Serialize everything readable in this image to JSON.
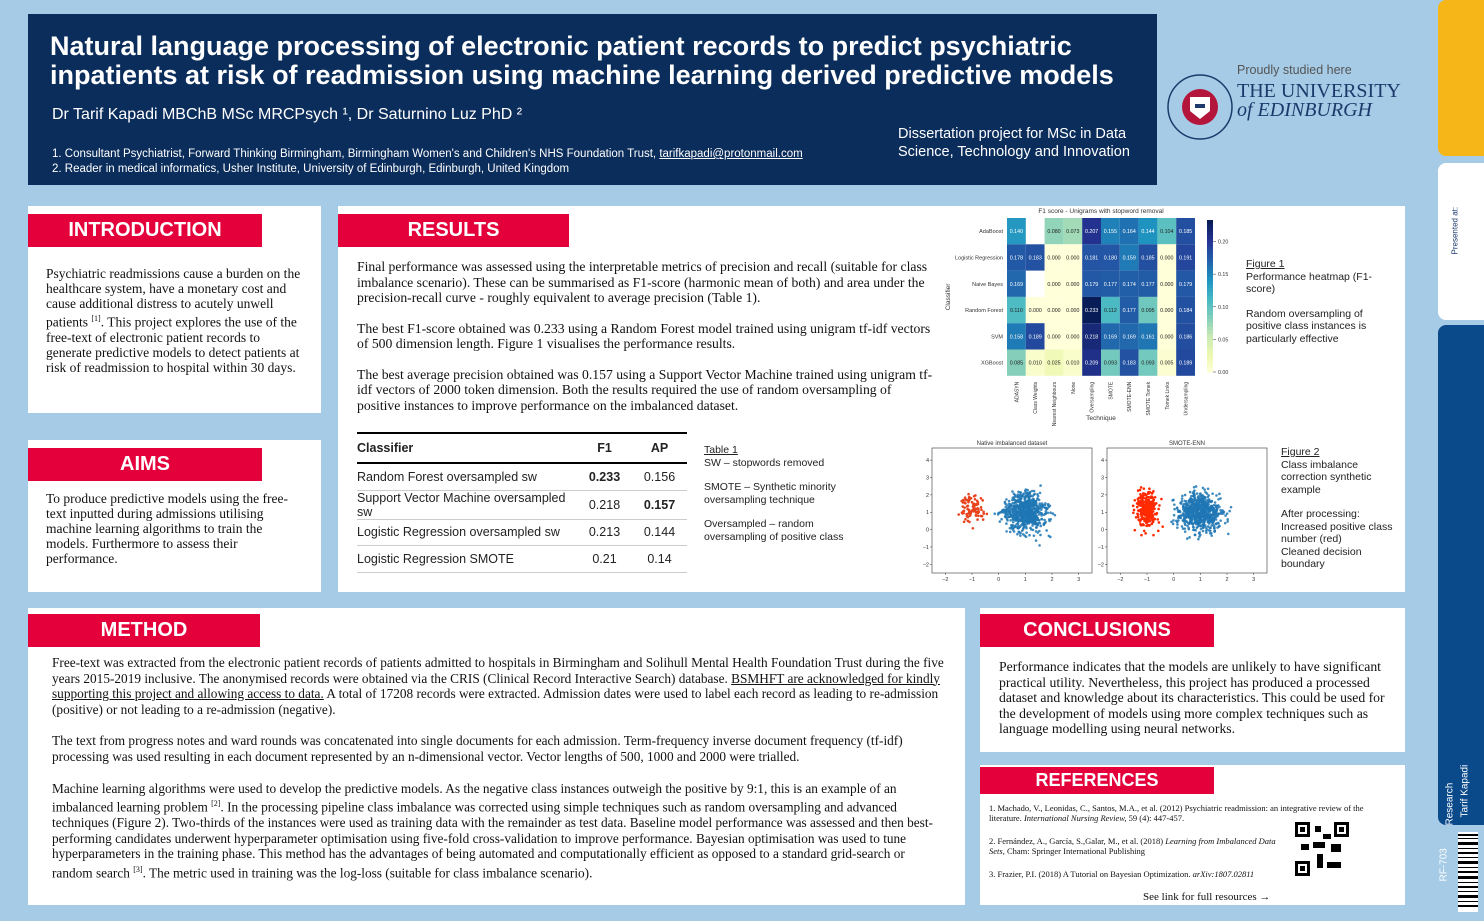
{
  "header": {
    "title_lines": [
      "Natural language processing of electronic patient records to predict psychiatric",
      "inpatients at risk of readmission using machine learning derived predictive models"
    ],
    "authors": "Dr Tarif Kapadi MBChB MSc MRCPsych ¹, Dr Saturnino Luz PhD ²",
    "affiliations": [
      "1. Consultant Psychiatrist, Forward Thinking Birmingham, Birmingham Women's and Children's NHS Foundation Trust, ",
      "tarifkapadi@protonmail.com",
      "2. Reader in medical informatics, Usher Institute, University of Edinburgh, Edinburgh, United Kingdom"
    ],
    "project": [
      "Dissertation project for MSc in Data",
      "Science, Technology and Innovation"
    ],
    "proudly": "Proudly studied here",
    "university": [
      "THE UNIVERSITY",
      "of EDINBURGH"
    ]
  },
  "introduction": {
    "heading": "INTRODUCTION",
    "text": [
      "Psychiatric readmissions cause a burden on the healthcare system, have a monetary cost and cause additional distress to acutely unwell patients ",
      "[1]",
      ". This project explores the use of the free-text of electronic patient records to generate predictive models to detect patients at risk of readmission to hospital within 30 days."
    ]
  },
  "aims": {
    "heading": "AIMS",
    "text": "To produce predictive models using the free-text inputted during admissions utilising machine learning algorithms to train the models. Furthermore to assess their performance."
  },
  "results": {
    "heading": "RESULTS",
    "paragraphs": [
      "Final performance was assessed using the interpretable metrics of precision and recall (suitable for class imbalance scenario). These can be summarised as F1-score (harmonic mean of both) and area under the precision-recall curve - roughly equivalent to average precision (Table 1).",
      "The best F1-score obtained was 0.233 using a Random Forest model trained using unigram tf-idf vectors of 500 dimension length. Figure 1 visualises the performance results.",
      "The best average precision obtained was 0.157 using a Support Vector Machine trained using unigram tf-idf vectors of 2000 token dimension. Both the results required the use of random oversampling of positive instances to improve performance on the imbalanced dataset."
    ],
    "table": {
      "columns": [
        "Classifier",
        "F1",
        "AP"
      ],
      "rows": [
        [
          "Random Forest oversampled sw",
          0.233,
          0.156
        ],
        [
          "Support Vector Machine oversampled sw",
          0.218,
          0.157
        ],
        [
          "Logistic Regression oversampled sw",
          0.213,
          0.144
        ],
        [
          "Logistic Regression SMOTE",
          0.21,
          0.14
        ]
      ]
    },
    "table_notes": [
      "Table 1",
      "SW – stopwords removed",
      "SMOTE – Synthetic minority oversampling technique",
      "Oversampled – random oversampling of positive class"
    ],
    "heatmap": {
      "title": "F1 score - Unigrams with stopword removal",
      "ylabel": "Classifier",
      "xlabel": "Technique",
      "rows": [
        "AdaBoost",
        "Logistic Regression",
        "Naive Bayes",
        "Random Forest",
        "SVM",
        "XGBoost"
      ],
      "columns": [
        "ADASYN",
        "Class Weights",
        "Edited Nearest Neighbours",
        "None",
        "Oversampling",
        "SMOTE",
        "SMOTE-ENN",
        "SMOTE Tomek",
        "Tomek Links",
        "Undersampling"
      ],
      "values": [
        [
          0.14,
          null,
          0.08,
          0.073,
          0.207,
          0.155,
          0.164,
          0.144,
          0.104,
          0.185
        ],
        [
          0.178,
          0.183,
          0,
          0,
          0.181,
          0.18,
          0.159,
          0.185,
          0,
          0.191
        ],
        [
          0.169,
          null,
          0,
          0,
          0.179,
          0.177,
          0.174,
          0.177,
          0,
          0.179
        ],
        [
          0.11,
          0,
          0,
          0,
          0.233,
          0.112,
          0.177,
          0.095,
          0,
          0.184
        ],
        [
          0.158,
          0.189,
          0,
          0,
          0.218,
          0.169,
          0.169,
          0.161,
          0,
          0.186
        ],
        [
          0.085,
          0.01,
          0.025,
          0.01,
          0.209,
          0.093,
          0.183,
          0.093,
          0.005,
          0.189
        ]
      ],
      "value_labels": [
        [
          "0.140",
          null,
          "0.080",
          "0.073",
          "0.207",
          "0.155",
          "0.164",
          "0.144",
          "0.104",
          "0.185"
        ],
        [
          "0.178",
          "0.183",
          "0.000",
          "0.000",
          "0.181",
          "0.180",
          "0.159",
          "0.185",
          "0.000",
          "0.191"
        ],
        [
          "0.169",
          null,
          "0.000",
          "0.000",
          "0.179",
          "0.177",
          "0.174",
          "0.177",
          "0.000",
          "0.179"
        ],
        [
          "0.110",
          "0.000",
          "0.000",
          "0.000",
          "0.233",
          "0.112",
          "0.177",
          "0.095",
          "0.000",
          "0.184"
        ],
        [
          "0.158",
          "0.189",
          "0.000",
          "0.000",
          "0.218",
          "0.169",
          "0.169",
          "0.161",
          "0.000",
          "0.186"
        ],
        [
          "0.085",
          "0.010",
          "0.025",
          "0.010",
          "0.209",
          "0.093",
          "0.183",
          "0.093",
          "0.005",
          "0.189"
        ]
      ],
      "clim": [
        0,
        0.233
      ],
      "cticks": [
        {
          "value": 0,
          "label": "0.00"
        },
        {
          "value": 0.05,
          "label": "0.05"
        },
        {
          "value": 0.1,
          "label": "0.10"
        },
        {
          "value": 0.15,
          "label": "0.15"
        },
        {
          "value": 0.2,
          "label": "0.20"
        }
      ],
      "colors": [
        "#ffffd9",
        "#edf8b1",
        "#c7e9b4",
        "#7fcdbb",
        "#41b6c4",
        "#1d91c0",
        "#225ea8",
        "#253494",
        "#081d58"
      ]
    },
    "figure1": [
      "Figure 1",
      "Performance heatmap (F1-score)",
      "Random oversampling of positive class instances is particularly effective"
    ],
    "scatter": {
      "titles": [
        "Native imbalanced dataset",
        "SMOTE-ENN"
      ],
      "xlim": [
        -2.5,
        3.5
      ],
      "ylim": [
        -2.5,
        4.7
      ],
      "xticks": [
        {
          "value": -2,
          "label": "−2"
        },
        {
          "value": -1,
          "label": "−1"
        },
        0,
        1,
        2,
        3
      ],
      "yticks": [
        {
          "value": -2,
          "label": "−2"
        },
        {
          "value": -1,
          "label": "−1"
        },
        0,
        1,
        2,
        3,
        4
      ]
    },
    "figure2": [
      "Figure 2",
      "Class imbalance correction synthetic example",
      "After processing:",
      "Increased positive class number (red)",
      "Cleaned decision boundary"
    ]
  },
  "method": {
    "heading": "METHOD",
    "paragraphs": [
      [
        "Free-text was extracted from the electronic patient records of patients admitted to hospitals in Birmingham and Solihull Mental Health Foundation Trust during the five years 2015-2019 inclusive. The anonymised records were obtained via the CRIS (Clinical Record Interactive Search) database. ",
        "BSMHFT are acknowledged for kindly supporting this project and allowing access to data.",
        " A total of 17208 records were extracted. Admission dates were used to label each record as leading to re-admission (positive) or not leading to a re-admission (negative)."
      ],
      [
        "The text from progress notes and ward rounds was concatenated into single documents for each admission. Term-frequency inverse document frequency (tf-idf) processing was used resulting in each document represented by an n-dimensional vector.  Vector lengths of 500, 1000 and 2000 were trialled."
      ],
      [
        "Machine learning algorithms were used to develop the predictive models. As the negative class instances outweigh the positive by 9:1, this is an example of an imbalanced learning problem ",
        "[2]",
        ". In the processing pipeline class imbalance was corrected using simple techniques such as random oversampling and advanced techniques (Figure 2). Two-thirds of the instances were used as training data with the remainder as test data. Baseline model performance was assessed and then best-performing candidates underwent hyperparameter optimisation using five-fold cross-validation to improve performance. Bayesian optimisation was used to tune hyperparameters in the training phase. This method has the advantages of being automated and computationally efficient as opposed to a standard grid-search or random search ",
        "[3]",
        ". The metric used in training was the log-loss (suitable for class imbalance scenario)."
      ]
    ]
  },
  "conclusions": {
    "heading": "CONCLUSIONS",
    "text": "Performance indicates that the models are unlikely to have significant practical utility. Nevertheless, this project has produced a processed dataset and knowledge about its characteristics. This could be used for the development of models using more complex techniques such as language modelling using neural networks."
  },
  "references": {
    "heading": "REFERENCES",
    "items": [
      [
        "1. Machado, V., Leonidas, C., Santos, M.A., et al. (2012) Psychiatric readmission: an integrative review of the literature. ",
        "International Nursing Review,",
        " 59 (4): 447-457."
      ],
      [
        "2. Fernández, A., García, S.,Galar, M., et al. (2018) ",
        "Learning from Imbalanced Data Sets,",
        " Cham: Springer International Publishing"
      ],
      [
        "3. Frazier, P.I. (2018) A Tutorial on Bayesian Optimization. ",
        "arXiv:1807.02811",
        ""
      ]
    ],
    "link": "See link for full resources →"
  },
  "sidebar": {
    "presented": "Presented at:",
    "category": "Research",
    "author": "Tarif Kapadi",
    "code": "RF-703"
  }
}
